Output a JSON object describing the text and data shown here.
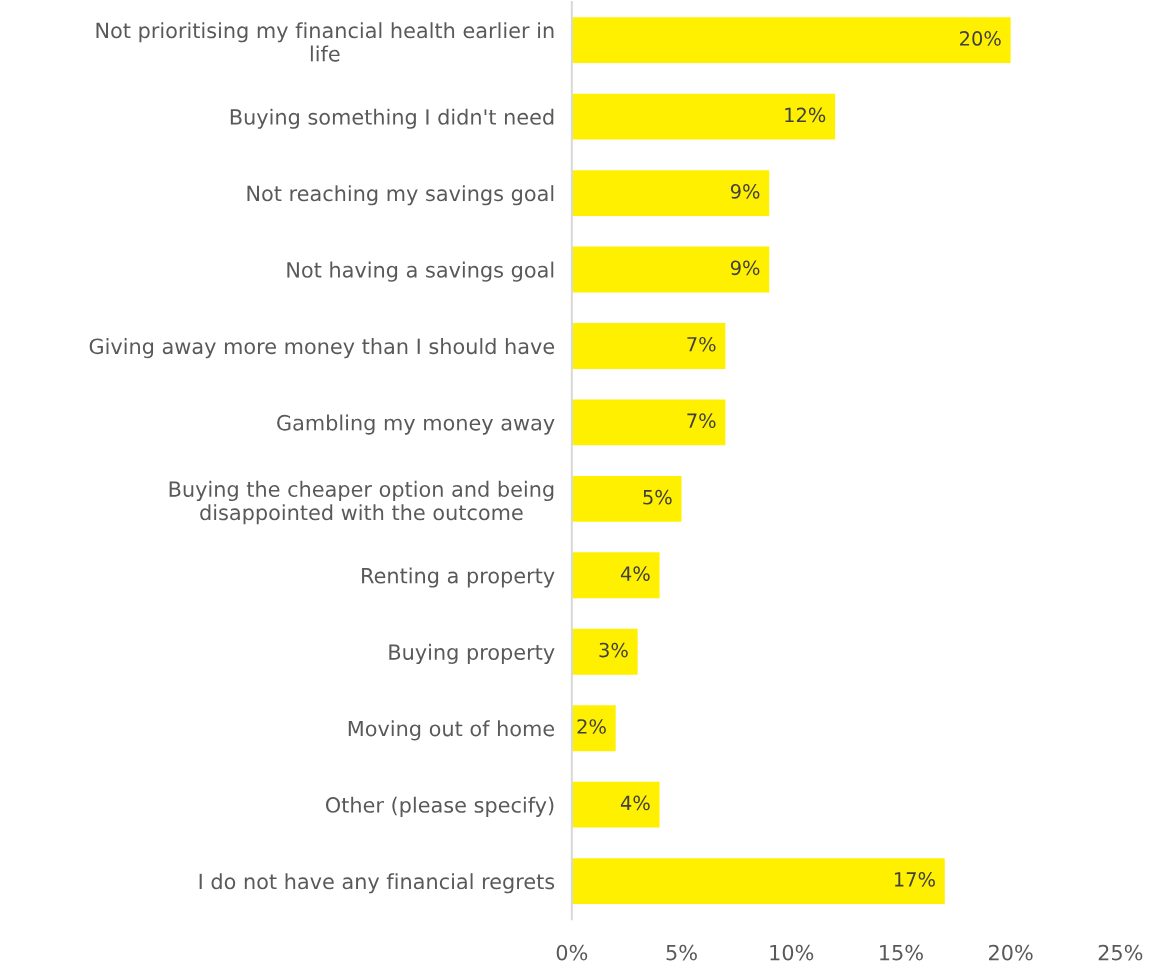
{
  "chart_data": {
    "type": "bar",
    "orientation": "horizontal",
    "categories": [
      "Not prioritising my financial health earlier in\nlife",
      "Buying something I didn't need",
      "Not reaching my savings goal",
      "Not having a savings goal",
      "Giving away more money than I should have",
      "Gambling my money away",
      "Buying the cheaper option and being\ndisappointed with the outcome",
      "Renting a property",
      "Buying property",
      "Moving out of home",
      "Other (please specify)",
      "I do not have any financial regrets"
    ],
    "values": [
      20,
      12,
      9,
      9,
      7,
      7,
      5,
      4,
      3,
      2,
      4,
      17
    ],
    "color": "#fff000",
    "xlim": [
      0,
      25
    ],
    "xticks": [
      {
        "value": 0,
        "label": "0%"
      },
      {
        "value": 5,
        "label": "5%"
      },
      {
        "value": 10,
        "label": "10%"
      },
      {
        "value": 15,
        "label": "15%"
      },
      {
        "value": 20,
        "label": "20%"
      },
      {
        "value": 25,
        "label": "25%"
      }
    ],
    "value_labels": [
      "20%",
      "12%",
      "9%",
      "9%",
      "7%",
      "7%",
      "5%",
      "4%",
      "3%",
      "2%",
      "4%",
      "17%"
    ],
    "grid": false,
    "legend": false
  }
}
